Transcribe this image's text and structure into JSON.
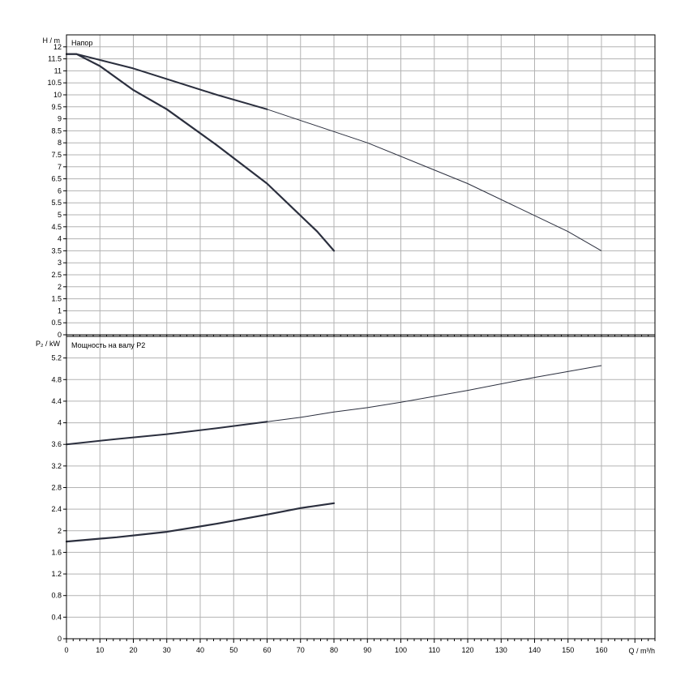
{
  "chart_data": [
    {
      "type": "line",
      "title": "Напор",
      "ylabel": "H / m",
      "xlabel": "",
      "xlim": [
        0,
        176
      ],
      "ylim": [
        0,
        12.5
      ],
      "grid": true,
      "x_ticks": [
        0,
        10,
        20,
        30,
        40,
        50,
        60,
        70,
        80,
        90,
        100,
        110,
        120,
        130,
        140,
        150,
        160
      ],
      "y_ticks": [
        0,
        0.5,
        1,
        1.5,
        2,
        2.5,
        3,
        3.5,
        4,
        4.5,
        5,
        5.5,
        6,
        6.5,
        7,
        7.5,
        8,
        8.5,
        9,
        9.5,
        10,
        10.5,
        11,
        11.5,
        12
      ],
      "y_tick_labels": [
        "0",
        "0.5",
        "1",
        "1.5",
        "2",
        "2.5",
        "3",
        "3.5",
        "4",
        "4.5",
        "5",
        "5.5",
        "6",
        "6.5",
        "7",
        "7.5",
        "8",
        "8.5",
        "9",
        "9.5",
        "10",
        "10.5",
        "11",
        "11.5",
        "12"
      ],
      "series": [
        {
          "x": [
            0,
            3,
            10,
            20,
            30,
            45,
            60,
            75,
            80
          ],
          "y": [
            11.7,
            11.7,
            11.2,
            10.2,
            9.4,
            7.9,
            6.3,
            4.3,
            3.5
          ],
          "color": "#2b2f3e",
          "weight": "heavy"
        },
        {
          "x": [
            0,
            3,
            20,
            45,
            60,
            90,
            120,
            150,
            160
          ],
          "y": [
            11.7,
            11.7,
            11.1,
            10.0,
            9.4,
            8.0,
            6.3,
            4.3,
            3.5
          ],
          "color": "#2b2f3e",
          "weight": "mixed"
        }
      ]
    },
    {
      "type": "line",
      "title": "Мощность на валу P2",
      "ylabel": "P₂ / kW",
      "xlabel": "Q / m³/h",
      "xlim": [
        0,
        176
      ],
      "ylim": [
        0,
        5.6
      ],
      "grid": true,
      "x_ticks": [
        0,
        10,
        20,
        30,
        40,
        50,
        60,
        70,
        80,
        90,
        100,
        110,
        120,
        130,
        140,
        150,
        160
      ],
      "y_ticks": [
        0,
        0.4,
        0.8,
        1.2,
        1.6,
        2,
        2.4,
        2.8,
        3.2,
        3.6,
        4,
        4.4,
        4.8,
        5.2
      ],
      "y_tick_labels": [
        "0",
        "0.4",
        "0.8",
        "1.2",
        "1.6",
        "2",
        "2.4",
        "2.8",
        "3.2",
        "3.6",
        "4",
        "4.4",
        "4.8",
        "5.2"
      ],
      "series": [
        {
          "x": [
            0,
            15,
            30,
            45,
            60,
            70,
            80
          ],
          "y": [
            1.8,
            1.88,
            1.98,
            2.13,
            2.3,
            2.42,
            2.51
          ],
          "color": "#2b2f3e",
          "weight": "heavy"
        },
        {
          "x": [
            0,
            15,
            30,
            45,
            60,
            70,
            80,
            90,
            100,
            120,
            140,
            160
          ],
          "y": [
            3.6,
            3.7,
            3.79,
            3.9,
            4.02,
            4.1,
            4.2,
            4.28,
            4.38,
            4.6,
            4.84,
            5.06
          ],
          "color": "#2b2f3e",
          "weight": "mixed"
        }
      ]
    }
  ]
}
